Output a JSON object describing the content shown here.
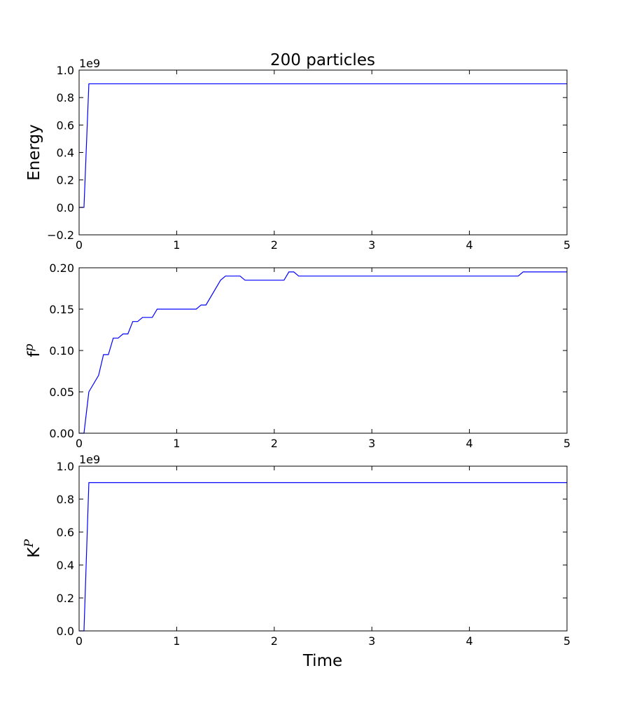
{
  "figure": {
    "title": "200 particles",
    "xlabel": "Time"
  },
  "chart_data": [
    {
      "type": "line",
      "title": "200 particles",
      "xlabel": "",
      "ylabel": "Energy",
      "ylabel_sup": "",
      "offset_text": "1e9",
      "xlim": [
        0,
        5
      ],
      "ylim": [
        -0.2,
        1.0
      ],
      "xticks": [
        0,
        1,
        2,
        3,
        4,
        5
      ],
      "xtick_labels": [
        "0",
        "1",
        "2",
        "3",
        "4",
        "5"
      ],
      "yticks": [
        -0.2,
        0.0,
        0.2,
        0.4,
        0.6,
        0.8,
        1.0
      ],
      "ytick_labels": [
        "−0.2",
        "0.0",
        "0.2",
        "0.4",
        "0.6",
        "0.8",
        "1.0"
      ],
      "grid": false,
      "color": "#0000ff",
      "series": [
        {
          "x": [
            0,
            0.05,
            0.1,
            5.0
          ],
          "y": [
            0.0,
            0.0,
            0.9,
            0.9
          ]
        }
      ]
    },
    {
      "type": "line",
      "title": "",
      "xlabel": "",
      "ylabel": "f",
      "ylabel_sup": "p",
      "offset_text": "",
      "xlim": [
        0,
        5
      ],
      "ylim": [
        0.0,
        0.2
      ],
      "xticks": [
        0,
        1,
        2,
        3,
        4,
        5
      ],
      "xtick_labels": [
        "0",
        "1",
        "2",
        "3",
        "4",
        "5"
      ],
      "yticks": [
        0.0,
        0.05,
        0.1,
        0.15,
        0.2
      ],
      "ytick_labels": [
        "0.00",
        "0.05",
        "0.10",
        "0.15",
        "0.20"
      ],
      "grid": false,
      "color": "#0000ff",
      "series": [
        {
          "x": [
            0,
            0.05,
            0.1,
            0.2,
            0.25,
            0.3,
            0.35,
            0.4,
            0.45,
            0.5,
            0.55,
            0.6,
            0.65,
            0.7,
            0.75,
            0.8,
            1.2,
            1.25,
            1.3,
            1.45,
            1.5,
            1.65,
            1.7,
            2.1,
            2.15,
            2.2,
            2.25,
            4.5,
            4.55,
            5.0
          ],
          "y": [
            0.0,
            0.0,
            0.05,
            0.07,
            0.095,
            0.095,
            0.115,
            0.115,
            0.12,
            0.12,
            0.135,
            0.135,
            0.14,
            0.14,
            0.14,
            0.15,
            0.15,
            0.155,
            0.155,
            0.185,
            0.19,
            0.19,
            0.185,
            0.185,
            0.195,
            0.195,
            0.19,
            0.19,
            0.195,
            0.195
          ]
        }
      ]
    },
    {
      "type": "line",
      "title": "",
      "xlabel": "Time",
      "ylabel": "K",
      "ylabel_sup": "P",
      "offset_text": "1e9",
      "xlim": [
        0,
        5
      ],
      "ylim": [
        0.0,
        1.0
      ],
      "xticks": [
        0,
        1,
        2,
        3,
        4,
        5
      ],
      "xtick_labels": [
        "0",
        "1",
        "2",
        "3",
        "4",
        "5"
      ],
      "yticks": [
        0.0,
        0.2,
        0.4,
        0.6,
        0.8,
        1.0
      ],
      "ytick_labels": [
        "0.0",
        "0.2",
        "0.4",
        "0.6",
        "0.8",
        "1.0"
      ],
      "grid": false,
      "color": "#0000ff",
      "series": [
        {
          "x": [
            0,
            0.05,
            0.1,
            5.0
          ],
          "y": [
            0.0,
            0.0,
            0.9,
            0.9
          ]
        }
      ]
    }
  ]
}
